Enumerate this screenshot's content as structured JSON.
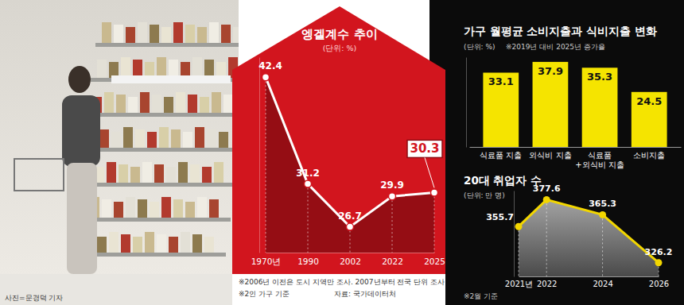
{
  "photo": {
    "caption": "사진=문경덕 기자"
  },
  "chart_data": [
    {
      "type": "line",
      "title": "엥겔계수 추이",
      "subtitle": "(단위: %)",
      "categories": [
        "1970년",
        "1990",
        "2002",
        "2022",
        "2025"
      ],
      "values": [
        42.4,
        31.2,
        26.7,
        29.9,
        30.3
      ],
      "color": "#ffffff",
      "ylim": [
        24,
        44.5
      ],
      "data_labels": true,
      "tick_labels": "x",
      "annotations": [
        "※2006년 이전은 도시 지역만 조사. 2007년부터 전국 단위 조사",
        "※2인 가구 기준"
      ],
      "source": "자료: 국가데이터처"
    },
    {
      "type": "bar",
      "title": "가구 월평균 소비지출과 식비지출 변화",
      "subtitle": "(단위: %)",
      "annotations": [
        "※2019년 대비 2025년 증가율"
      ],
      "categories": [
        "식료품 지출",
        "외식비 지출",
        "식료품\n+외식비 지출",
        "소비지출"
      ],
      "values": [
        33.1,
        37.9,
        35.3,
        24.5
      ],
      "color": "#f5e400",
      "ylim": [
        0,
        40
      ],
      "data_labels": true,
      "tick_labels": "x"
    },
    {
      "type": "line",
      "title": "20대 취업자 수",
      "subtitle": "(단위: 만 명)",
      "annotations": [
        "※2월 기준"
      ],
      "x": [
        2021,
        2022,
        2024,
        2026
      ],
      "values": [
        355.7,
        377.6,
        365.3,
        326.2
      ],
      "xlim": [
        2021,
        2026
      ],
      "xticks": [
        {
          "value": 2021,
          "label": "2021년"
        },
        2022,
        2024,
        2026
      ],
      "ylim": [
        315,
        385
      ],
      "color": "#f2d600",
      "data_labels": true,
      "tick_labels": "x"
    }
  ]
}
